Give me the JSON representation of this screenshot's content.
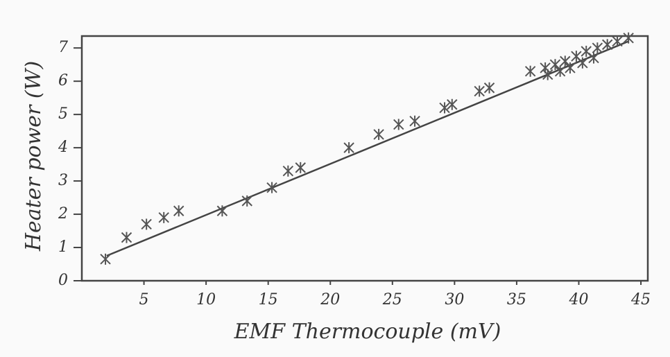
{
  "chart_data": {
    "type": "scatter",
    "xlabel": "EMF Thermocouple (mV)",
    "ylabel": "Heater power (W)",
    "x": [
      1.9,
      3.6,
      5.2,
      6.6,
      7.8,
      11.3,
      13.3,
      15.3,
      16.6,
      17.6,
      21.5,
      23.9,
      25.5,
      26.8,
      29.2,
      29.8,
      32.0,
      32.8,
      36.1,
      37.3,
      38.1,
      38.9,
      39.8,
      40.6,
      41.5,
      42.3,
      43.1,
      44.0,
      37.5,
      38.5,
      39.3,
      40.3,
      41.2
    ],
    "values": [
      0.65,
      1.3,
      1.7,
      1.9,
      2.1,
      2.1,
      2.4,
      2.8,
      3.3,
      3.4,
      4.0,
      4.4,
      4.7,
      4.8,
      5.2,
      5.3,
      5.7,
      5.8,
      6.3,
      6.4,
      6.5,
      6.6,
      6.75,
      6.9,
      7.0,
      7.1,
      7.2,
      7.3,
      6.2,
      6.3,
      6.4,
      6.55,
      6.7
    ],
    "color": "#555555",
    "fit_line": {
      "x": [
        2.0,
        44.0
      ],
      "values": [
        0.75,
        7.2
      ]
    },
    "xlim": [
      0,
      45.5
    ],
    "ylim": [
      0,
      7.4
    ],
    "xticks": [
      5,
      10,
      15,
      20,
      25,
      30,
      35,
      40,
      45
    ],
    "yticks": [
      0,
      1,
      2,
      3,
      4,
      5,
      6,
      7
    ],
    "grid": false
  }
}
